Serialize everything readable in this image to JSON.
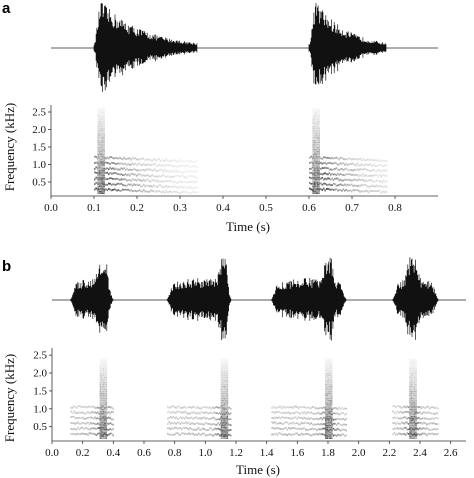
{
  "chart_data": [
    {
      "type": "spectrogram",
      "panel_label": "a",
      "xlabel": "Time (s)",
      "ylabel": "Frequency (kHz)",
      "xlim": [
        0.0,
        0.9
      ],
      "ylim": [
        0.1,
        2.7
      ],
      "x_ticks": [
        0.0,
        0.1,
        0.2,
        0.3,
        0.4,
        0.5,
        0.6,
        0.7,
        0.8
      ],
      "x_tick_labels": [
        "0.0",
        "0.1",
        "0.2",
        "0.3",
        "0.4",
        "0.5",
        "0.6",
        "0.7",
        "0.8"
      ],
      "y_ticks": [
        0.5,
        1.0,
        1.5,
        2.0,
        2.5
      ],
      "y_tick_labels": [
        "0.5",
        "1.0",
        "1.5",
        "2.0",
        "2.5"
      ],
      "calls": [
        {
          "start": 0.1,
          "end": 0.34,
          "peak": 0.115
        },
        {
          "start": 0.6,
          "end": 0.78,
          "peak": 0.615
        }
      ],
      "harmonics_khz": [
        0.3,
        0.45,
        0.6,
        0.75,
        0.9,
        1.05,
        1.2
      ],
      "has_waveform": true
    },
    {
      "type": "spectrogram",
      "panel_label": "b",
      "xlabel": "Time (s)",
      "ylabel": "Frequency (kHz)",
      "xlim": [
        0.0,
        2.7
      ],
      "ylim": [
        0.1,
        2.7
      ],
      "x_ticks": [
        0.0,
        0.2,
        0.4,
        0.6,
        0.8,
        1.0,
        1.2,
        1.4,
        1.6,
        1.8,
        2.0,
        2.2,
        2.4,
        2.6
      ],
      "x_tick_labels": [
        "0.0",
        "0.2",
        "0.4",
        "0.6",
        "0.8",
        "1.0",
        "1.2",
        "1.4",
        "1.6",
        "1.8",
        "2.0",
        "2.2",
        "2.4",
        "2.6"
      ],
      "y_ticks": [
        0.5,
        1.0,
        1.5,
        2.0,
        2.5
      ],
      "y_tick_labels": [
        "0.5",
        "1.0",
        "1.5",
        "2.0",
        "2.5"
      ],
      "calls": [
        {
          "start": 0.12,
          "end": 0.4,
          "peak": 0.33
        },
        {
          "start": 0.75,
          "end": 1.17,
          "peak": 1.12
        },
        {
          "start": 1.43,
          "end": 1.92,
          "peak": 1.8
        },
        {
          "start": 2.22,
          "end": 2.52,
          "peak": 2.35
        }
      ],
      "harmonics_khz": [
        0.3,
        0.45,
        0.6,
        0.75,
        0.9,
        1.05
      ],
      "has_waveform": true
    }
  ]
}
